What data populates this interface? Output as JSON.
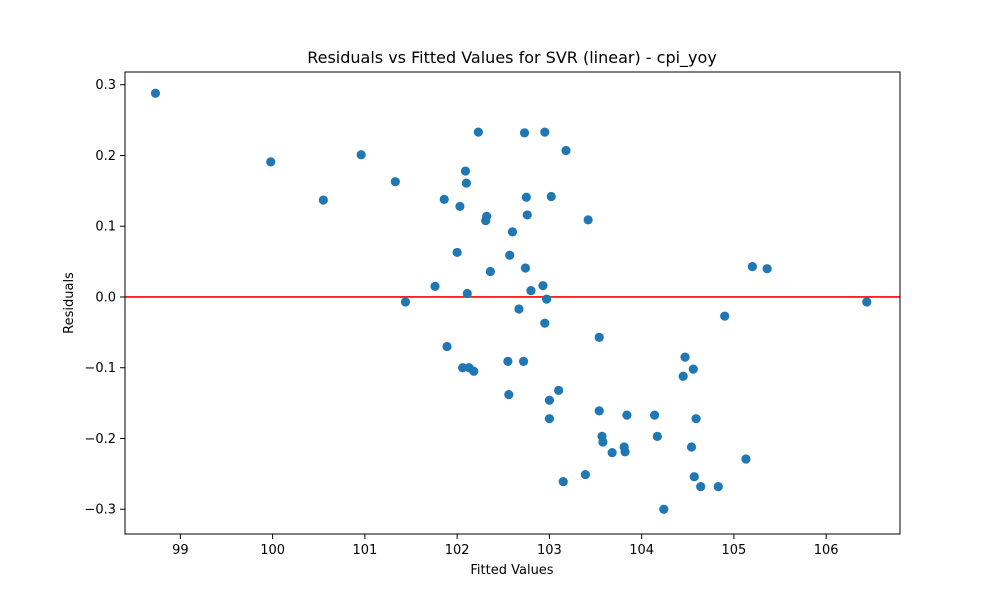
{
  "chart_data": {
    "type": "scatter",
    "title": "Residuals vs Fitted Values for SVR (linear) - cpi_yoy",
    "xlabel": "Fitted Values",
    "ylabel": "Residuals",
    "xlim": [
      98.4,
      106.8
    ],
    "ylim": [
      -0.335,
      0.318
    ],
    "xticks": [
      99,
      100,
      101,
      102,
      103,
      104,
      105,
      106
    ],
    "xtick_labels": [
      "99",
      "100",
      "101",
      "102",
      "103",
      "104",
      "105",
      "106"
    ],
    "yticks": [
      -0.3,
      -0.2,
      -0.1,
      0.0,
      0.1,
      0.2,
      0.3
    ],
    "ytick_labels": [
      "−0.3",
      "−0.2",
      "−0.1",
      "0.0",
      "0.1",
      "0.2",
      "0.3"
    ],
    "grid": false,
    "reference_line": {
      "y": 0.0,
      "color": "#ff0000"
    },
    "point_color": "#1f77b4",
    "points": [
      {
        "x": 98.73,
        "y": 0.288
      },
      {
        "x": 99.98,
        "y": 0.191
      },
      {
        "x": 100.55,
        "y": 0.137
      },
      {
        "x": 100.96,
        "y": 0.201
      },
      {
        "x": 101.33,
        "y": 0.163
      },
      {
        "x": 101.44,
        "y": -0.007
      },
      {
        "x": 101.76,
        "y": 0.015
      },
      {
        "x": 101.86,
        "y": 0.138
      },
      {
        "x": 101.89,
        "y": -0.07
      },
      {
        "x": 102.0,
        "y": 0.063
      },
      {
        "x": 102.03,
        "y": 0.128
      },
      {
        "x": 102.06,
        "y": -0.1
      },
      {
        "x": 102.09,
        "y": 0.178
      },
      {
        "x": 102.1,
        "y": 0.161
      },
      {
        "x": 102.11,
        "y": 0.005
      },
      {
        "x": 102.13,
        "y": -0.1
      },
      {
        "x": 102.18,
        "y": -0.105
      },
      {
        "x": 102.23,
        "y": 0.233
      },
      {
        "x": 102.31,
        "y": 0.108
      },
      {
        "x": 102.32,
        "y": 0.114
      },
      {
        "x": 102.36,
        "y": 0.036
      },
      {
        "x": 102.55,
        "y": -0.091
      },
      {
        "x": 102.56,
        "y": -0.138
      },
      {
        "x": 102.57,
        "y": 0.059
      },
      {
        "x": 102.6,
        "y": 0.092
      },
      {
        "x": 102.67,
        "y": -0.017
      },
      {
        "x": 102.72,
        "y": -0.091
      },
      {
        "x": 102.73,
        "y": 0.232
      },
      {
        "x": 102.74,
        "y": 0.041
      },
      {
        "x": 102.75,
        "y": 0.141
      },
      {
        "x": 102.76,
        "y": 0.116
      },
      {
        "x": 102.8,
        "y": 0.009
      },
      {
        "x": 102.93,
        "y": 0.016
      },
      {
        "x": 102.95,
        "y": 0.233
      },
      {
        "x": 102.95,
        "y": -0.037
      },
      {
        "x": 102.97,
        "y": -0.003
      },
      {
        "x": 103.0,
        "y": -0.146
      },
      {
        "x": 103.0,
        "y": -0.172
      },
      {
        "x": 103.02,
        "y": 0.142
      },
      {
        "x": 103.1,
        "y": -0.132
      },
      {
        "x": 103.15,
        "y": -0.261
      },
      {
        "x": 103.18,
        "y": 0.207
      },
      {
        "x": 103.39,
        "y": -0.251
      },
      {
        "x": 103.42,
        "y": 0.109
      },
      {
        "x": 103.54,
        "y": -0.057
      },
      {
        "x": 103.54,
        "y": -0.161
      },
      {
        "x": 103.57,
        "y": -0.197
      },
      {
        "x": 103.58,
        "y": -0.205
      },
      {
        "x": 103.68,
        "y": -0.22
      },
      {
        "x": 103.81,
        "y": -0.212
      },
      {
        "x": 103.82,
        "y": -0.219
      },
      {
        "x": 103.84,
        "y": -0.167
      },
      {
        "x": 104.14,
        "y": -0.167
      },
      {
        "x": 104.17,
        "y": -0.197
      },
      {
        "x": 104.24,
        "y": -0.3
      },
      {
        "x": 104.45,
        "y": -0.112
      },
      {
        "x": 104.47,
        "y": -0.085
      },
      {
        "x": 104.54,
        "y": -0.212
      },
      {
        "x": 104.56,
        "y": -0.102
      },
      {
        "x": 104.57,
        "y": -0.254
      },
      {
        "x": 104.59,
        "y": -0.172
      },
      {
        "x": 104.64,
        "y": -0.268
      },
      {
        "x": 104.83,
        "y": -0.268
      },
      {
        "x": 104.9,
        "y": -0.027
      },
      {
        "x": 105.13,
        "y": -0.229
      },
      {
        "x": 105.2,
        "y": 0.043
      },
      {
        "x": 105.36,
        "y": 0.04
      },
      {
        "x": 106.44,
        "y": -0.007
      }
    ]
  }
}
